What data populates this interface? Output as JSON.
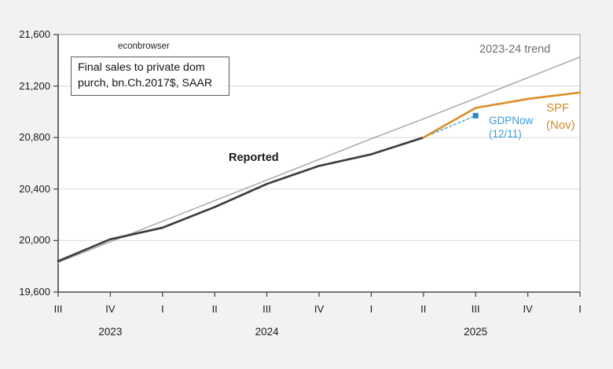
{
  "watermark": "econbrowser",
  "note_box": {
    "line1": "Final sales to private dom",
    "line2": "purch, bn.Ch.2017$, SAAR"
  },
  "chart_data": {
    "type": "line",
    "title": "Final sales to private dom purch, bn.Ch.2017$, SAAR",
    "grid": true,
    "legend_position": "inline-annotations",
    "x_axis": {
      "tick_labels": [
        "III",
        "IV",
        "I",
        "II",
        "III",
        "IV",
        "I",
        "II",
        "III",
        "IV",
        "I"
      ],
      "quarters": [
        "2023Q3",
        "2023Q4",
        "2024Q1",
        "2024Q2",
        "2024Q3",
        "2024Q4",
        "2025Q1",
        "2025Q2",
        "2025Q3",
        "2025Q4",
        "2026Q1"
      ],
      "years": [
        {
          "label": "2023",
          "tick_index": 1
        },
        {
          "label": "2024",
          "tick_index": 4
        },
        {
          "label": "2025",
          "tick_index": 8
        }
      ]
    },
    "y_axis": {
      "ylim": [
        19600,
        21600
      ],
      "ticks": [
        {
          "value": 19600,
          "label": "19,600"
        },
        {
          "value": 20000,
          "label": "20,000"
        },
        {
          "value": 20400,
          "label": "20,400"
        },
        {
          "value": 20800,
          "label": "20,800"
        },
        {
          "value": 21200,
          "label": "21,200"
        },
        {
          "value": 21600,
          "label": "21,600"
        }
      ]
    },
    "series": [
      {
        "name": "2023-24 trend",
        "color": "#a8a8a8",
        "width": 1.5,
        "start_index": 0,
        "values": [
          19830,
          19990,
          20150,
          20310,
          20470,
          20630,
          20790,
          20945,
          21105,
          21265,
          21425
        ]
      },
      {
        "name": "GDPNow (12/11)",
        "color": "#45a2db",
        "width": 1.4,
        "dash": "3 3",
        "start_index": 7,
        "values": [
          20800,
          20970
        ],
        "end_marker": {
          "shape": "square",
          "size": 7,
          "color": "#2b85c7"
        }
      },
      {
        "name": "Reported",
        "color": "#3d3d3d",
        "width": 2.7,
        "start_index": 0,
        "values": [
          19840,
          20010,
          20100,
          20260,
          20440,
          20580,
          20670,
          20800
        ]
      },
      {
        "name": "SPF (Nov)",
        "color": "#d9912e",
        "width": 2.7,
        "start_index": 7,
        "values": [
          20800,
          21030,
          21100,
          21150
        ]
      }
    ],
    "annotations": {
      "reported": "Reported",
      "trend": "2023-24 trend",
      "spf": "SPF\n(Nov)",
      "gdpnow": "GDPNow\n(12/11)"
    },
    "colors": {
      "plot_background": "#ffffff",
      "page_background": "#f2f2f0",
      "gridline": "#d9d9d9",
      "plot_border": "#9a9a9a",
      "axis": "#4a4a4a"
    }
  }
}
